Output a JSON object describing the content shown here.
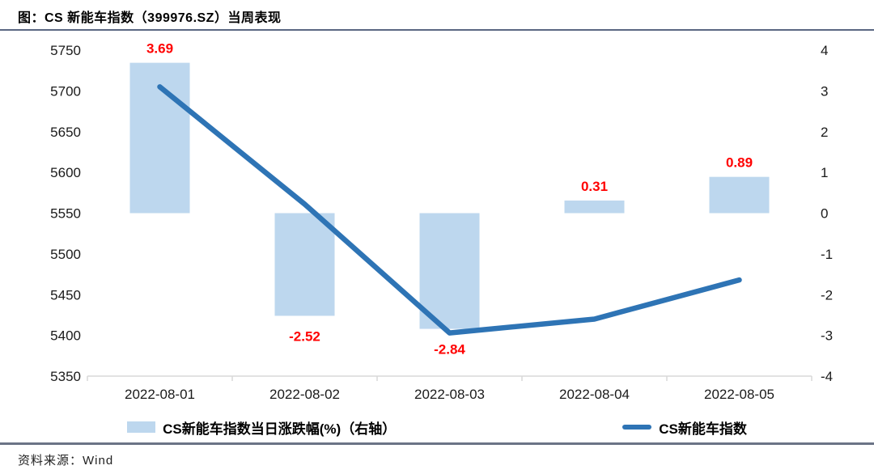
{
  "header": {
    "title": "图：CS 新能车指数（399976.SZ）当周表现"
  },
  "footer": {
    "source_label": "资料来源：Wind"
  },
  "colors": {
    "bar_fill": "#BDD7EE",
    "line_stroke": "#2E74B5",
    "data_label": "#FF0000",
    "axis_line": "#D9D9D9",
    "tick_text": "#1a1a1a"
  },
  "chart_data": {
    "type": "combo",
    "title": "图：CS 新能车指数（399976.SZ）当周表现",
    "categories": [
      "2022-08-01",
      "2022-08-02",
      "2022-08-03",
      "2022-08-04",
      "2022-08-05"
    ],
    "series": [
      {
        "name": "CS新能车指数当日涨跌幅(%)（右轴）",
        "type": "bar",
        "axis": "right",
        "values": [
          3.69,
          -2.52,
          -2.84,
          0.31,
          0.89
        ],
        "value_labels": [
          "3.69",
          "-2.52",
          "-2.84",
          "0.31",
          "0.89"
        ],
        "color": "#BDD7EE",
        "label_color": "#FF0000"
      },
      {
        "name": "CS新能车指数",
        "type": "line",
        "axis": "left",
        "values": [
          5705,
          5561,
          5403,
          5420,
          5468
        ],
        "color": "#2E74B5"
      }
    ],
    "left_axis": {
      "min": 5350,
      "max": 5750,
      "step": 50,
      "tick_labels": [
        "5750",
        "5700",
        "5650",
        "5600",
        "5550",
        "5500",
        "5450",
        "5400",
        "5350"
      ]
    },
    "right_axis": {
      "min": -4,
      "max": 4,
      "step": 1,
      "tick_labels": [
        "4",
        "3",
        "2",
        "1",
        "0",
        "-1",
        "-2",
        "-3",
        "-4"
      ]
    },
    "grid": false,
    "legend_position": "bottom"
  }
}
